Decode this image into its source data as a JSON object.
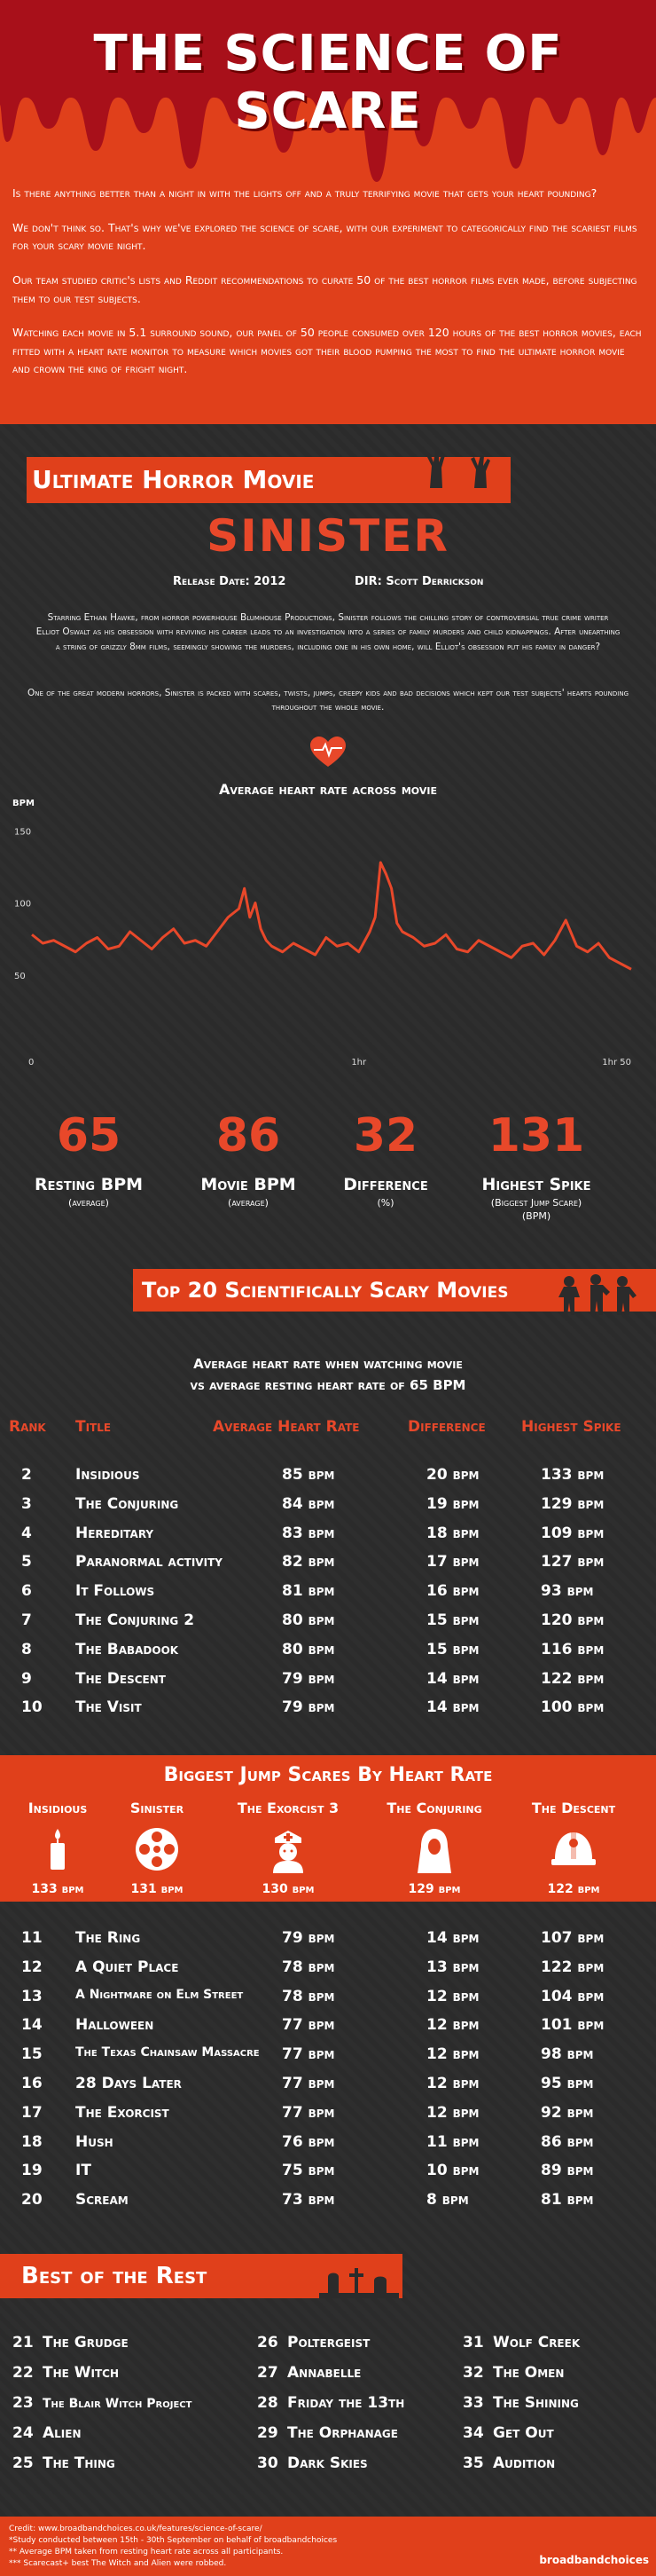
{
  "header": {
    "title": "THE SCIENCE OF SCARE",
    "intro": [
      "Is there anything better than a night in with the lights off and a truly terrifying movie that gets your heart pounding?",
      "We don't think so. That's why we've explored the science of scare, with our experiment to categorically find the scariest films for your scary movie night.",
      "Our team studied critic's lists and Reddit recommendations to curate 50 of the best horror films ever made, before subjecting them to our test subjects.",
      "Watching each movie in 5.1 surround sound, our panel of 50 people consumed over 120 hours of the best horror movies, each fitted with a heart rate monitor to measure which movies got their blood pumping the most to find the ultimate horror movie and crown the king of fright night."
    ]
  },
  "ultimate": {
    "section_title": "Ultimate Horror Movie",
    "movie": "SINISTER",
    "release": "Release Date: 2012",
    "director": "DIR: Scott Derrickson",
    "synopsis": "Starring Ethan Hawke, from horror powerhouse Blumhouse Productions, Sinister follows the chilling story of controversial true crime writer Elliot Oswalt as his obsession with reviving his career leads to an investigation into a series of family murders and child kidnappings. After unearthing a string of grizzly 8mm films, seemingly showing the murders, including one in his own home, will Elliot's obsession put his family in danger?",
    "synopsis2": "One of the great modern horrors, Sinister is packed with scares, twists, jumps, creepy kids and bad decisions which kept our test subjects' hearts pounding throughout the whole movie.",
    "chart_title": "Average heart rate across movie"
  },
  "chart_data": {
    "type": "line",
    "title": "Average heart rate across movie",
    "ylabel": "BPM",
    "ylim": [
      0,
      160
    ],
    "yticks": [
      50,
      100,
      150
    ],
    "xticks": [
      {
        "label": "0",
        "x": 0
      },
      {
        "label": "1hr",
        "x": 60
      },
      {
        "label": "1hr 50",
        "x": 110
      }
    ],
    "xlim": [
      0,
      110
    ],
    "series": [
      {
        "color": "#e8482a",
        "x": [
          0,
          2,
          4,
          6,
          8,
          10,
          12,
          14,
          16,
          18,
          20,
          22,
          24,
          26,
          28,
          30,
          32,
          34,
          36,
          38,
          39,
          40,
          41,
          42,
          43,
          44,
          46,
          48,
          50,
          52,
          54,
          56,
          58,
          60,
          62,
          63,
          64,
          65,
          66,
          67,
          68,
          70,
          72,
          74,
          76,
          78,
          80,
          82,
          84,
          86,
          88,
          90,
          92,
          94,
          96,
          98,
          100,
          102,
          104,
          106,
          108,
          110
        ],
        "y": [
          78,
          72,
          74,
          70,
          66,
          72,
          76,
          68,
          70,
          80,
          74,
          68,
          76,
          82,
          72,
          74,
          70,
          80,
          90,
          96,
          110,
          90,
          100,
          82,
          74,
          70,
          66,
          72,
          68,
          64,
          76,
          70,
          72,
          66,
          80,
          90,
          128,
          120,
          110,
          86,
          80,
          76,
          70,
          72,
          78,
          68,
          66,
          74,
          70,
          66,
          62,
          70,
          72,
          64,
          74,
          88,
          70,
          66,
          72,
          62,
          58,
          54
        ]
      }
    ]
  },
  "stats": [
    {
      "num": "65",
      "label": "Resting BPM",
      "sub": "(average)"
    },
    {
      "num": "86",
      "label": "Movie BPM",
      "sub": "(average)"
    },
    {
      "num": "32",
      "label": "Difference",
      "sub": "(%)"
    },
    {
      "num": "131",
      "label": "Highest Spike",
      "sub": "(Biggest Jump Scare)\n(BPM)"
    }
  ],
  "top20": {
    "title": "Top 20 Scientifically Scary Movies",
    "subtitle1": "Average heart rate when watching movie",
    "subtitle2": "vs average resting heart rate of 65 BPM",
    "headers": {
      "rank": "Rank",
      "title": "Title",
      "avg": "Average Heart Rate",
      "diff": "Difference",
      "spike": "Highest Spike"
    },
    "rows_a": [
      [
        "2",
        "Insidious",
        "85 bpm",
        "20 bpm",
        "133 bpm"
      ],
      [
        "3",
        "The Conjuring",
        "84 bpm",
        "19 bpm",
        "129 bpm"
      ],
      [
        "4",
        "Hereditary",
        "83 bpm",
        "18 bpm",
        "109 bpm"
      ],
      [
        "5",
        "Paranormal activity",
        "82 bpm",
        "17 bpm",
        "127 bpm"
      ],
      [
        "6",
        "It Follows",
        "81 bpm",
        "16 bpm",
        "93 bpm"
      ],
      [
        "7",
        "The Conjuring 2",
        "80 bpm",
        "15 bpm",
        "120 bpm"
      ],
      [
        "8",
        "The Babadook",
        "80 bpm",
        "15 bpm",
        "116 bpm"
      ],
      [
        "9",
        "The Descent",
        "79 bpm",
        "14 bpm",
        "122 bpm"
      ],
      [
        "10",
        "The Visit",
        "79 bpm",
        "14 bpm",
        "100 bpm"
      ]
    ],
    "rows_b": [
      [
        "11",
        "The Ring",
        "79 bpm",
        "14 bpm",
        "107 bpm"
      ],
      [
        "12",
        "A Quiet Place",
        "78 bpm",
        "13 bpm",
        "122 bpm"
      ],
      [
        "13",
        "A Nightmare on Elm Street",
        "78 bpm",
        "12 bpm",
        "104 bpm"
      ],
      [
        "14",
        "Halloween",
        "77 bpm",
        "12 bpm",
        "101 bpm"
      ],
      [
        "15",
        "The Texas Chainsaw Massacre",
        "77 bpm",
        "12 bpm",
        "98 bpm"
      ],
      [
        "16",
        "28 Days Later",
        "77 bpm",
        "12 bpm",
        "95 bpm"
      ],
      [
        "17",
        "The Exorcist",
        "77 bpm",
        "12 bpm",
        "92 bpm"
      ],
      [
        "18",
        "Hush",
        "76 bpm",
        "11 bpm",
        "86 bpm"
      ],
      [
        "19",
        "IT",
        "75 bpm",
        "10 bpm",
        "89 bpm"
      ],
      [
        "20",
        "Scream",
        "73 bpm",
        "8 bpm",
        "81 bpm"
      ]
    ]
  },
  "jumps": {
    "title": "Biggest Jump Scares By Heart Rate",
    "items": [
      {
        "name": "Insidious",
        "value": "133 bpm",
        "icon": "candle-icon"
      },
      {
        "name": "Sinister",
        "value": "131 bpm",
        "icon": "film-reel-icon"
      },
      {
        "name": "The Exorcist 3",
        "value": "130 bpm",
        "icon": "nurse-icon"
      },
      {
        "name": "The Conjuring",
        "value": "129 bpm",
        "icon": "ghost-woman-icon"
      },
      {
        "name": "The Descent",
        "value": "122 bpm",
        "icon": "helmet-icon"
      }
    ]
  },
  "best_rest": {
    "title": "Best of the Rest",
    "col1": [
      [
        "21",
        "The Grudge"
      ],
      [
        "22",
        "The Witch"
      ],
      [
        "23",
        "The Blair Witch Project"
      ],
      [
        "24",
        "Alien"
      ],
      [
        "25",
        "The Thing"
      ]
    ],
    "col2": [
      [
        "26",
        "Poltergeist"
      ],
      [
        "27",
        "Annabelle"
      ],
      [
        "28",
        "Friday the 13th"
      ],
      [
        "29",
        "The Orphanage"
      ],
      [
        "30",
        "Dark Skies"
      ]
    ],
    "col3": [
      [
        "31",
        "Wolf Creek"
      ],
      [
        "32",
        "The Omen"
      ],
      [
        "33",
        "The Shining"
      ],
      [
        "34",
        "Get Out"
      ],
      [
        "35",
        "Audition"
      ]
    ]
  },
  "footer": {
    "credit": "Credit: www.broadbandchoices.co.uk/features/science-of-scare/",
    "note1": "*Study conducted between 15th - 30th September on behalf of broadbandchoices",
    "note2": "** Average BPM taken from resting heart rate across all participants.",
    "note3": "*** Scarecast+ best The Witch and Alien were robbed.",
    "logo": "broadbandchoices"
  },
  "colors": {
    "accent": "#e0401b",
    "text_accent": "#e8482a",
    "blood": "#a8101a"
  }
}
